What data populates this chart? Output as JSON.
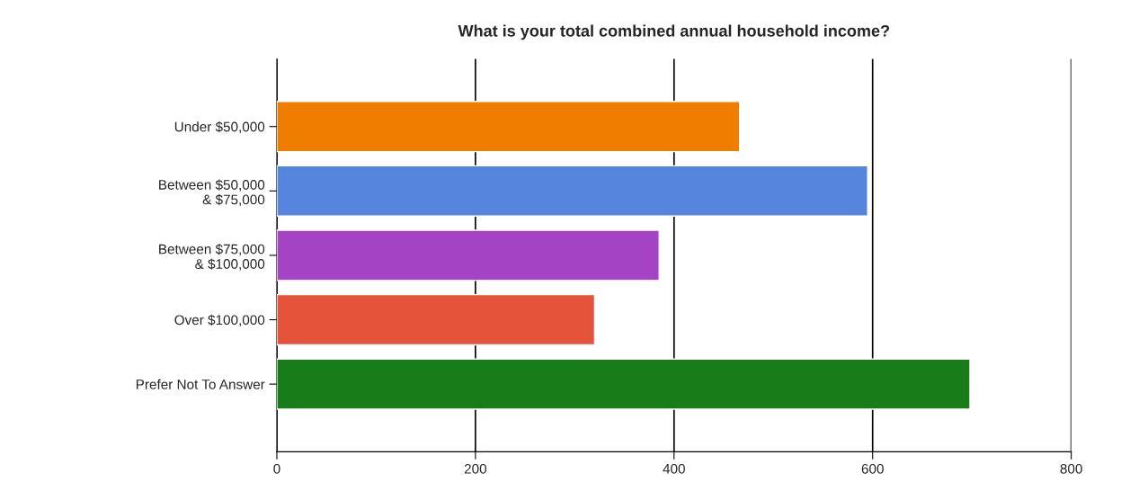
{
  "chart_data": {
    "type": "bar",
    "orientation": "horizontal",
    "title": "What is your total combined annual household income?",
    "categories": [
      "Under $50,000",
      "Between $50,000\n& $75,000",
      "Between $75,000\n& $100,000",
      "Over $100,000",
      "Prefer Not To Answer"
    ],
    "values": [
      466,
      595,
      385,
      320,
      698
    ],
    "colors": [
      "#ee7d00",
      "#5585dd",
      "#a443c3",
      "#e5533a",
      "#187d18"
    ],
    "xlim": [
      0,
      800
    ],
    "xticks": [
      0,
      200,
      400,
      600,
      800
    ],
    "grid": "x",
    "legend": false
  }
}
